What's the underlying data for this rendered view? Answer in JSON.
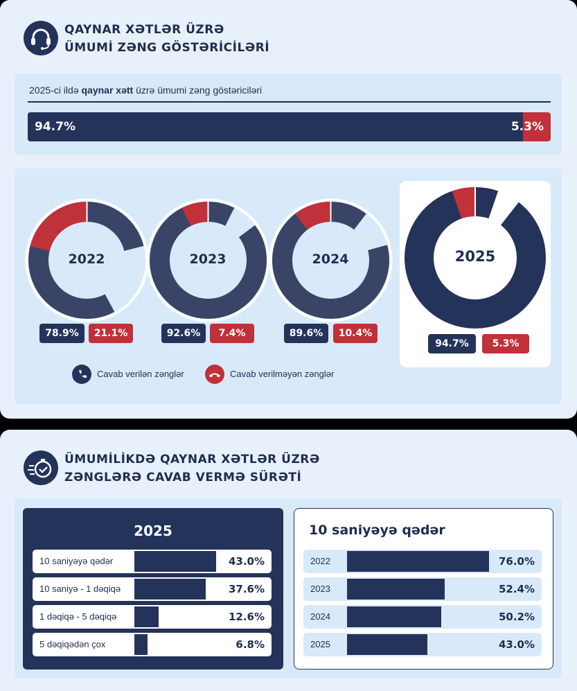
{
  "section1": {
    "title_line1": "QAYNAR XƏTLƏR ÜZRƏ",
    "title_line2": "ÜMUMİ ZƏNG GÖSTƏRİCİLƏRİ",
    "subtitle_pre": "2025-ci ildə",
    "subtitle_bold": "qaynar xətt",
    "subtitle_post": "üzrə ümumi zəng göstəriciləri",
    "icon": "headset-icon"
  },
  "section2": {
    "title_line1": "ÜMUMİLİKDƏ QAYNAR XƏTLƏR ÜZRƏ",
    "title_line2": "ZƏNGLƏRƏ CAVAB VERMƏ SÜRƏTİ",
    "icon": "fast-timer-icon"
  },
  "legend": {
    "answered": "Cavab verilən zənglər",
    "unanswered": "Cavab verilməyən zənglər",
    "answered_icon": "phone-icon",
    "unanswered_icon": "phone-hangup-icon"
  },
  "colors": {
    "navy": "#24335a",
    "red": "#c0313a",
    "donut_navy": "#3a4466",
    "panel": "#e8f1fb",
    "box": "#d8eafa"
  },
  "chart_data": [
    {
      "type": "bar",
      "stacked": true,
      "orientation": "horizontal",
      "categories": [
        "2025"
      ],
      "series": [
        {
          "name": "Cavab verilən zənglər",
          "values": [
            94.7
          ],
          "label": "94.7%"
        },
        {
          "name": "Cavab verilməyən zənglər",
          "values": [
            5.3
          ],
          "label": "5.3%"
        }
      ]
    },
    {
      "type": "pie",
      "donut": true,
      "charts": [
        {
          "year": "2022",
          "answered": 78.9,
          "unanswered": 21.1,
          "answered_label": "78.9%",
          "unanswered_label": "21.1%"
        },
        {
          "year": "2023",
          "answered": 92.6,
          "unanswered": 7.4,
          "answered_label": "92.6%",
          "unanswered_label": "7.4%"
        },
        {
          "year": "2024",
          "answered": 89.6,
          "unanswered": 10.4,
          "answered_label": "89.6%",
          "unanswered_label": "10.4%"
        },
        {
          "year": "2025",
          "answered": 94.7,
          "unanswered": 5.3,
          "answered_label": "94.7%",
          "unanswered_label": "5.3%"
        }
      ]
    },
    {
      "type": "bar",
      "orientation": "horizontal",
      "title": "2025",
      "categories": [
        "10 saniyəyə qədər",
        "10 saniyə - 1 dəqiqə",
        "1 dəqiqə - 5 dəqiqə",
        "5 dəqiqədən çox"
      ],
      "values": [
        43.0,
        37.6,
        12.6,
        6.8
      ],
      "value_labels": [
        "43.0%",
        "37.6%",
        "12.6%",
        "6.8%"
      ],
      "xlim": [
        0,
        50
      ]
    },
    {
      "type": "bar",
      "orientation": "horizontal",
      "title": "10 saniyəyə qədər",
      "categories": [
        "2022",
        "2023",
        "2024",
        "2025"
      ],
      "values": [
        76.0,
        52.4,
        50.2,
        43.0
      ],
      "value_labels": [
        "76.0%",
        "52.4%",
        "50.2%",
        "43.0%"
      ],
      "xlim": [
        0,
        80
      ]
    }
  ]
}
